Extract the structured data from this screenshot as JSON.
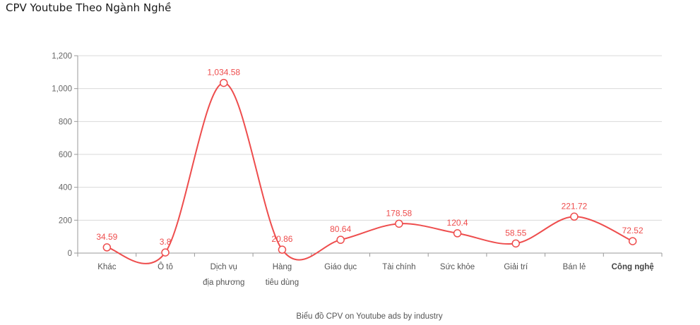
{
  "title": "CPV Youtube Theo Ngành Nghề",
  "caption": "Biểu đồ CPV on Youtube ads by industry",
  "colors": {
    "series": "#ee4d4d",
    "grid": "#d9d9d9",
    "axis": "#999999"
  },
  "chart_data": {
    "type": "line",
    "categories": [
      [
        "Khác"
      ],
      [
        "Ô tô"
      ],
      [
        "Dịch vụ",
        "địa phương"
      ],
      [
        "Hàng",
        "tiêu dùng"
      ],
      [
        "Giáo dục"
      ],
      [
        "Tài chính"
      ],
      [
        "Sức khỏe"
      ],
      [
        "Giải trí"
      ],
      [
        "Bán lẻ"
      ],
      [
        "Công nghệ"
      ]
    ],
    "highlighted_category": "Công nghệ",
    "values": [
      34.59,
      3.8,
      1034.58,
      20.86,
      80.64,
      178.58,
      120.4,
      58.55,
      221.72,
      72.52
    ],
    "data_labels": [
      "34.59",
      "3.8",
      "1,034.58",
      "20.86",
      "80.64",
      "178.58",
      "120.4",
      "58.55",
      "221.72",
      "72.52"
    ],
    "y_ticks": [
      "0",
      "200",
      "400",
      "600",
      "800",
      "1,000",
      "1,200"
    ],
    "ylim": [
      0,
      1200
    ],
    "grid": true,
    "smooth": true
  }
}
